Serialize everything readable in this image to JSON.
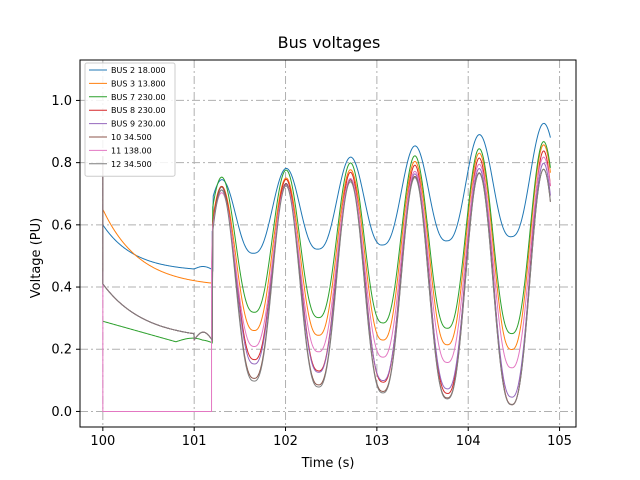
{
  "chart_data": {
    "type": "line",
    "title": "Bus voltages",
    "xlabel": "Time (s)",
    "ylabel": "Voltage (PU)",
    "xlim": [
      99.75,
      105.18
    ],
    "ylim": [
      -0.05,
      1.13
    ],
    "xticks": [
      100,
      101,
      102,
      103,
      104,
      105
    ],
    "yticks": [
      0.0,
      0.2,
      0.4,
      0.6,
      0.8,
      1.0
    ],
    "xtick_labels": [
      "100",
      "101",
      "102",
      "103",
      "104",
      "105"
    ],
    "ytick_labels": [
      "0.0",
      "0.2",
      "0.4",
      "0.6",
      "0.8",
      "1.0"
    ],
    "grid": true,
    "grid_style": "dashdot",
    "legend_position": "top-left",
    "series": [
      {
        "name": "BUS 2 18.000",
        "color": "#1f77b4"
      },
      {
        "name": "BUS 3 13.800",
        "color": "#ff7f0e"
      },
      {
        "name": "BUS 7 230.00",
        "color": "#2ca02c"
      },
      {
        "name": "BUS 8 230.00",
        "color": "#d62728"
      },
      {
        "name": "BUS 9 230.00",
        "color": "#9467bd"
      },
      {
        "name": "10 34.500",
        "color": "#8c564b"
      },
      {
        "name": "11 138.00",
        "color": "#e377c2"
      },
      {
        "name": "12 34.500",
        "color": "#7f7f7f"
      }
    ],
    "time_samples": [
      100.0,
      100.2,
      100.4,
      100.6,
      100.8,
      101.0,
      101.15,
      101.2,
      101.3,
      101.45,
      101.6,
      101.75,
      101.9,
      102.05,
      102.2,
      102.35,
      102.5,
      102.65,
      102.8,
      102.95,
      103.1,
      103.25,
      103.4,
      103.55,
      103.7,
      103.85,
      104.0,
      104.15,
      104.3,
      104.45,
      104.6,
      104.75,
      104.9
    ],
    "approx_ranges": {
      "pre_fault": {
        "BUS 2 18.000": [
          0.45,
          0.6
        ],
        "BUS 3 13.800": [
          0.4,
          0.65
        ],
        "BUS 7 230.00": [
          0.2,
          0.29
        ],
        "BUS 8-12": [
          0.22,
          0.41
        ]
      },
      "post_fault_peak": {
        "BUS 2 18.000": [
          0.79,
          0.93
        ],
        "BUS 3 13.800": [
          0.7,
          0.86
        ],
        "BUS 7 230.00": [
          0.75,
          0.87
        ],
        "BUS 8-12": [
          0.72,
          0.84
        ]
      },
      "post_fault_trough": {
        "BUS 2 18.000": [
          0.5,
          0.56
        ],
        "BUS 3 13.800": [
          0.19,
          0.26
        ],
        "BUS 7 230.00": [
          0.24,
          0.35
        ],
        "BUS 8-12": [
          0.0,
          0.25
        ]
      }
    }
  }
}
